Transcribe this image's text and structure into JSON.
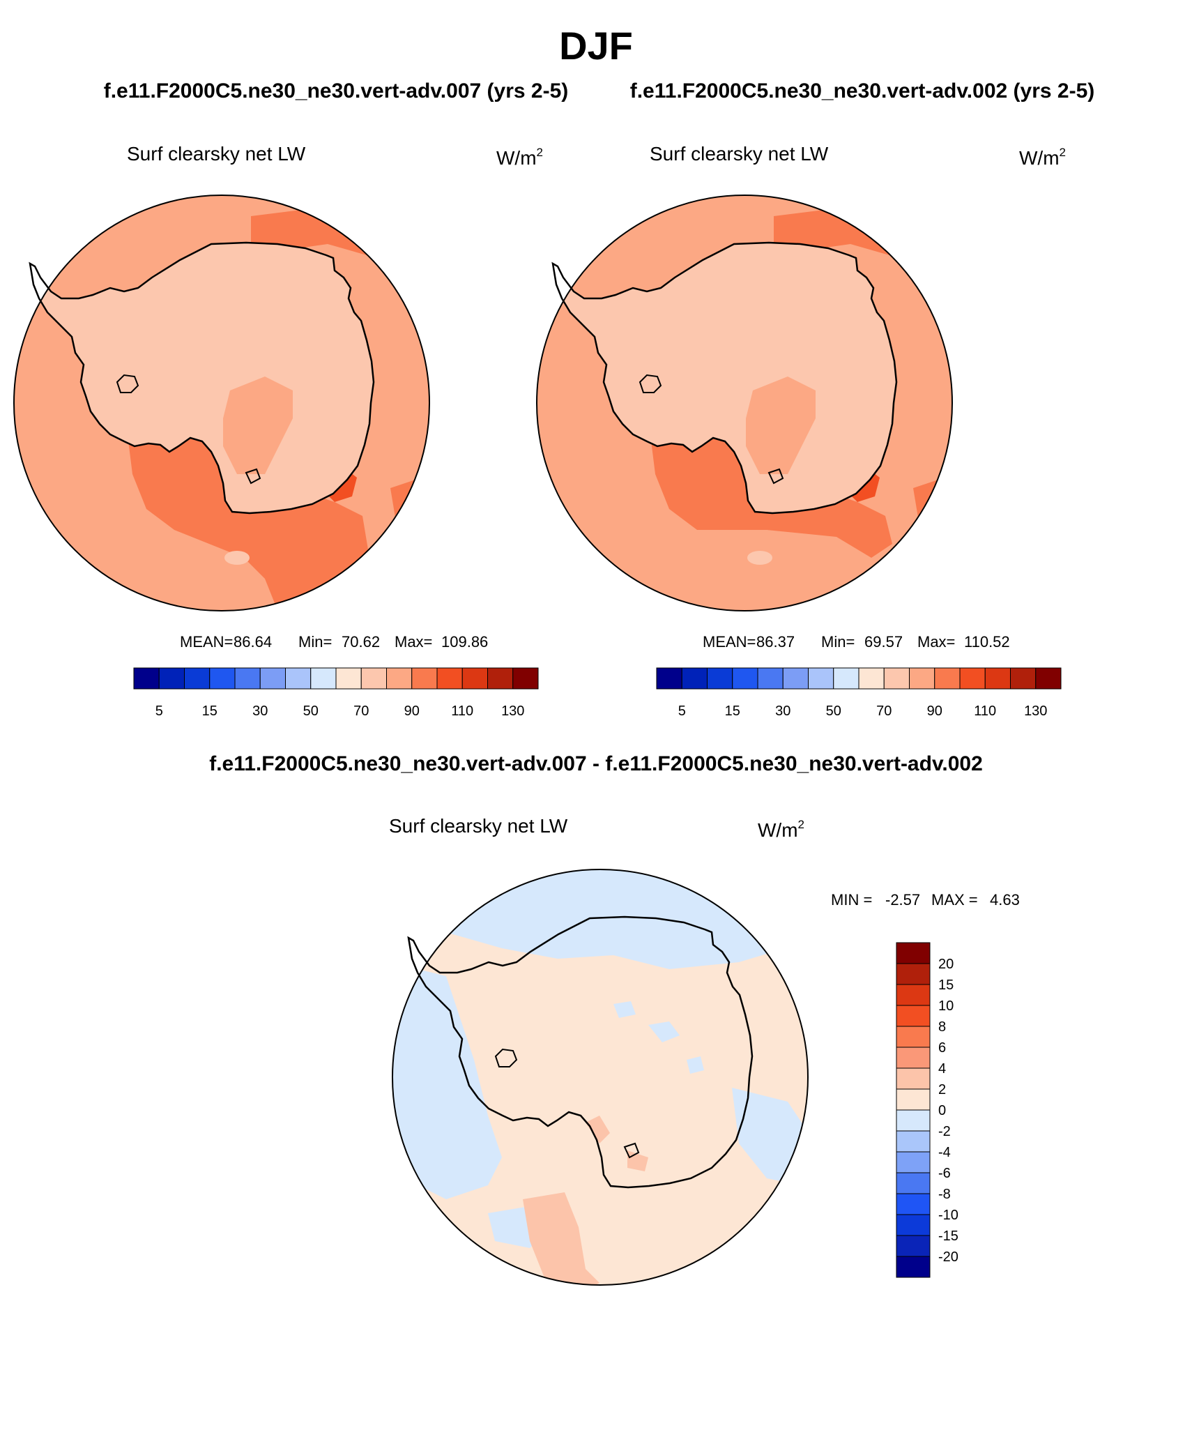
{
  "title": "DJF",
  "case_left_title": "f.e11.F2000C5.ne30_ne30.vert-adv.007 (yrs 2-5)",
  "case_right_title": "f.e11.F2000C5.ne30_ne30.vert-adv.002 (yrs 2-5)",
  "diff_title": "f.e11.F2000C5.ne30_ne30.vert-adv.007 - f.e11.F2000C5.ne30_ne30.vert-adv.002",
  "variable_label": "Surf clearsky net LW",
  "units_base": "W/m",
  "units_exp": "2",
  "panel_left": {
    "mean_label": "MEAN=",
    "mean": "86.64",
    "min_label": "Min=",
    "min": "70.62",
    "max_label": "Max=",
    "max": "109.86"
  },
  "panel_right": {
    "mean_label": "MEAN=",
    "mean": "86.37",
    "min_label": "Min=",
    "min": "69.57",
    "max_label": "Max=",
    "max": "110.52"
  },
  "panel_diff": {
    "min_label": "MIN =",
    "min": "-2.57",
    "max_label": "MAX =",
    "max": "4.63"
  },
  "colorbar_abs": {
    "colors": [
      "#00008b",
      "#0022b8",
      "#0a3bd6",
      "#1f57f0",
      "#4a78f2",
      "#7c9df5",
      "#aac4fa",
      "#d6e8fc",
      "#fde6d4",
      "#fcc7ae",
      "#fca884",
      "#f97a4e",
      "#f24f22",
      "#dc3813",
      "#b0200b",
      "#800000"
    ],
    "tick_labels": [
      "5",
      "15",
      "30",
      "50",
      "70",
      "90",
      "110",
      "130"
    ]
  },
  "colorbar_diff": {
    "colors": [
      "#00008b",
      "#0a24b8",
      "#0c3ad9",
      "#1f55f5",
      "#4a78f2",
      "#7ea2f7",
      "#aac6fa",
      "#d6e8fc",
      "#fde6d4",
      "#fcc4aa",
      "#fa9878",
      "#f97a4e",
      "#f24f22",
      "#dc3813",
      "#b0200b",
      "#800000"
    ],
    "tick_labels": [
      "20",
      "15",
      "10",
      "8",
      "6",
      "4",
      "2",
      "0",
      "-2",
      "-4",
      "-6",
      "-8",
      "-10",
      "-15",
      "-20"
    ]
  },
  "map_colors": {
    "c70_80": "#fcc7ae",
    "c80_90": "#fca884",
    "c90_100": "#f97a4e",
    "c100_110": "#f24f22",
    "d_pos": "#fde6d4",
    "d_pos2": "#fcc4aa",
    "d_neg": "#d6e8fc",
    "d_neg2": "#aac6fa",
    "coast": "#000000"
  }
}
